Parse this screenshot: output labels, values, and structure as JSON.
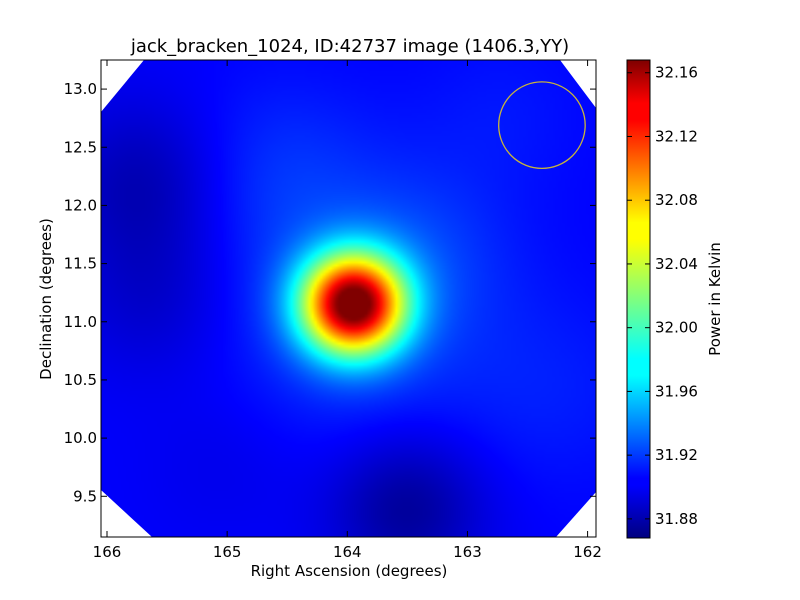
{
  "chart_data": {
    "type": "heatmap",
    "title": "jack_bracken_1024, ID:42737 image (1406.3,YY)",
    "xlabel": "Right Ascension (degrees)",
    "ylabel": "Declination (degrees)",
    "xlim": [
      166.05,
      161.93
    ],
    "ylim": [
      9.15,
      13.25
    ],
    "x_ticks": [
      166,
      165,
      164,
      163,
      162
    ],
    "x_tick_labels": [
      "166",
      "165",
      "164",
      "163",
      "162"
    ],
    "y_ticks": [
      9.5,
      10.0,
      10.5,
      11.0,
      11.5,
      12.0,
      12.5,
      13.0
    ],
    "y_tick_labels": [
      "9.5",
      "10.0",
      "10.5",
      "11.0",
      "11.5",
      "12.0",
      "12.5",
      "13.0"
    ],
    "colormap": "jet",
    "colorbar": {
      "label": "Power in Kelvin",
      "vmin": 31.868,
      "vmax": 32.168,
      "ticks": [
        31.88,
        31.92,
        31.96,
        32.0,
        32.04,
        32.08,
        32.12,
        32.16
      ],
      "tick_labels": [
        "31.88",
        "31.92",
        "31.96",
        "32.00",
        "32.04",
        "32.08",
        "32.12",
        "32.16"
      ]
    },
    "peak": {
      "ra": 163.95,
      "dec": 11.15,
      "value": 32.168
    },
    "background_level": 31.905,
    "beam_circle": {
      "ra": 162.38,
      "dec": 12.69,
      "radius_deg": 0.36,
      "color": "#c8b43c"
    }
  },
  "colors": {
    "masked_corner": "#ffffff",
    "axis": "#000000"
  }
}
